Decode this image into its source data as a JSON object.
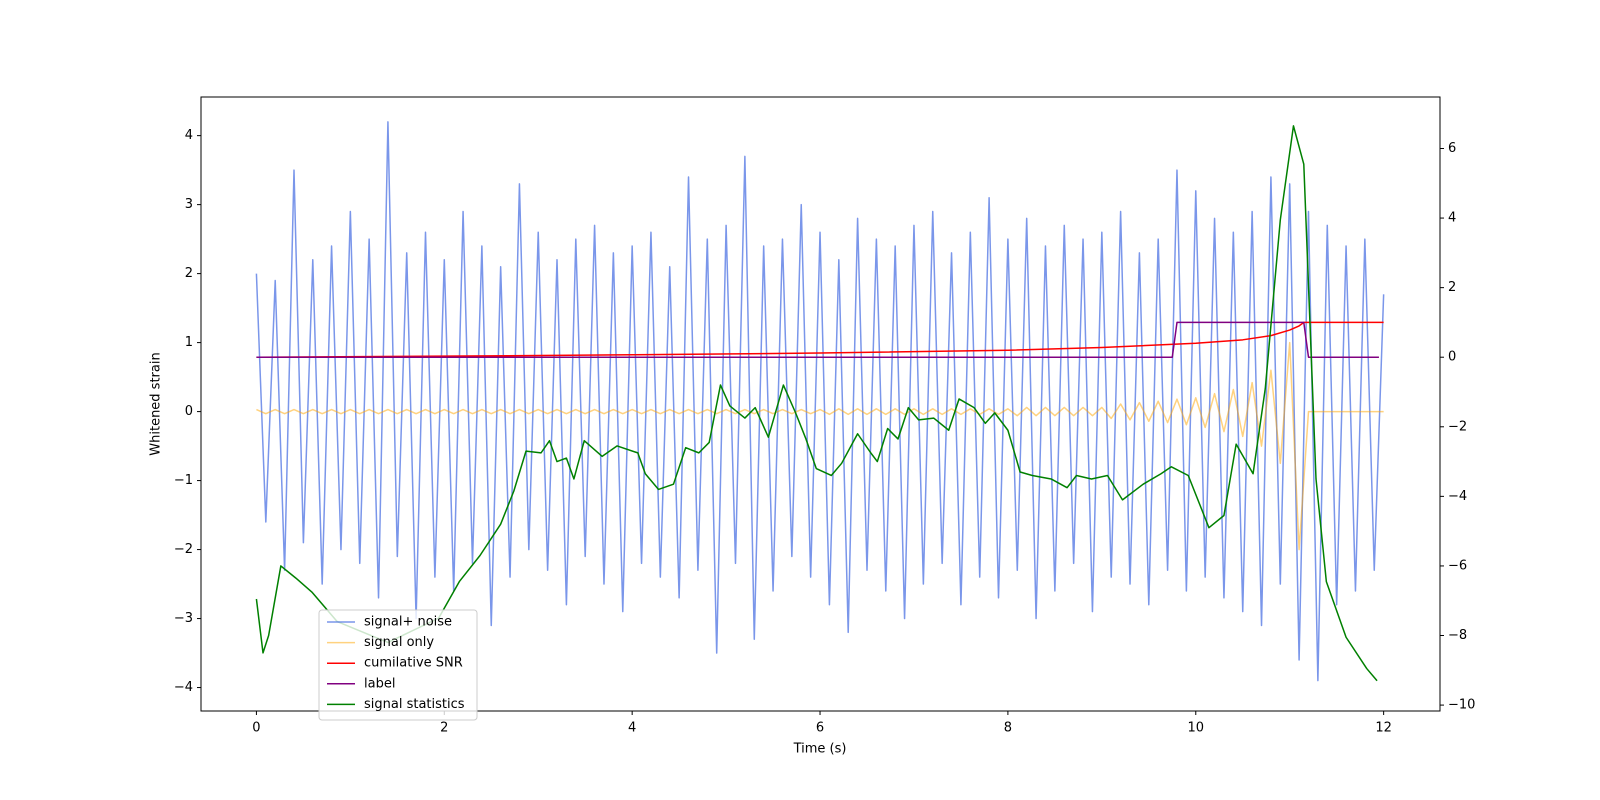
{
  "chart_data": {
    "type": "line",
    "xlabel": "Time (s)",
    "ylabel": "Whitened strain",
    "xlim": [
      -0.59,
      12.6
    ],
    "ylim": [
      -4.34,
      4.56
    ],
    "y2lim": [
      -10.17,
      7.48
    ],
    "xticks": [
      0,
      2,
      4,
      6,
      8,
      10,
      12
    ],
    "yticks": [
      {
        "value": -4,
        "label": "−4"
      },
      {
        "value": -3,
        "label": "−3"
      },
      {
        "value": -2,
        "label": "−2"
      },
      {
        "value": -1,
        "label": "−1"
      },
      0,
      1,
      2,
      3,
      4
    ],
    "y2ticks": [
      {
        "value": -10,
        "label": "−10"
      },
      {
        "value": -8,
        "label": "−8"
      },
      {
        "value": -6,
        "label": "−6"
      },
      {
        "value": -4,
        "label": "−4"
      },
      {
        "value": -2,
        "label": "−2"
      },
      0,
      2,
      4,
      6
    ],
    "x": [
      0,
      0.1,
      0.2,
      0.3,
      0.4,
      0.5,
      0.6,
      0.7,
      0.8,
      0.9,
      1,
      1.1,
      1.2,
      1.3,
      1.4,
      1.5,
      1.6,
      1.7,
      1.8,
      1.9,
      2,
      2.1,
      2.2,
      2.3,
      2.4,
      2.5,
      2.6,
      2.7,
      2.8,
      2.9,
      3,
      3.1,
      3.2,
      3.3,
      3.4,
      3.5,
      3.6,
      3.7,
      3.8,
      3.9,
      4,
      4.1,
      4.2,
      4.3,
      4.4,
      4.5,
      4.6,
      4.7,
      4.8,
      4.9,
      5,
      5.1,
      5.2,
      5.3,
      5.4,
      5.5,
      5.6,
      5.7,
      5.8,
      5.9,
      6,
      6.1,
      6.2,
      6.3,
      6.4,
      6.5,
      6.6,
      6.7,
      6.8,
      6.9,
      7,
      7.1,
      7.2,
      7.3,
      7.4,
      7.5,
      7.6,
      7.7,
      7.8,
      7.9,
      8,
      8.1,
      8.2,
      8.3,
      8.4,
      8.5,
      8.6,
      8.7,
      8.8,
      8.9,
      9,
      9.1,
      9.2,
      9.3,
      9.4,
      9.5,
      9.6,
      9.7,
      9.8,
      9.9,
      10,
      10.1,
      10.2,
      10.3,
      10.4,
      10.5,
      10.6,
      10.7,
      10.8,
      10.9,
      11,
      11.1,
      11.2,
      11.3,
      11.4,
      11.5,
      11.6,
      11.7,
      11.8,
      11.9,
      12
    ],
    "series": [
      {
        "name": "signal+ noise",
        "color": "#4169e1",
        "alpha": 0.7,
        "values": [
          2.0,
          -1.6,
          1.9,
          -2.3,
          3.5,
          -1.9,
          2.2,
          -2.5,
          2.4,
          -2.0,
          2.9,
          -2.2,
          2.5,
          -2.7,
          4.2,
          -2.1,
          2.3,
          -3.0,
          2.6,
          -2.4,
          2.2,
          -2.6,
          2.9,
          -2.2,
          2.4,
          -3.1,
          2.1,
          -2.4,
          3.3,
          -2.0,
          2.6,
          -2.3,
          2.2,
          -2.8,
          2.5,
          -2.1,
          2.7,
          -2.5,
          2.3,
          -2.9,
          2.4,
          -2.2,
          2.6,
          -2.4,
          2.1,
          -2.7,
          3.4,
          -2.3,
          2.5,
          -3.5,
          2.7,
          -2.2,
          3.7,
          -3.3,
          2.4,
          -2.6,
          2.5,
          -2.1,
          3.0,
          -2.4,
          2.6,
          -2.8,
          2.2,
          -3.2,
          2.8,
          -2.3,
          2.5,
          -2.6,
          2.4,
          -3.0,
          2.7,
          -2.5,
          2.9,
          -2.2,
          2.3,
          -2.8,
          2.6,
          -2.4,
          3.1,
          -2.7,
          2.5,
          -2.3,
          2.8,
          -3.0,
          2.4,
          -2.6,
          2.7,
          -2.2,
          2.5,
          -2.9,
          2.6,
          -2.4,
          2.9,
          -2.5,
          2.3,
          -2.8,
          2.5,
          -2.3,
          3.5,
          -2.6,
          3.2,
          -2.4,
          2.8,
          -2.7,
          2.6,
          -2.9,
          2.9,
          -3.1,
          3.4,
          -2.5,
          3.3,
          -3.6,
          2.9,
          -3.9,
          2.7,
          -2.8,
          2.4,
          -2.6,
          2.5,
          -2.3,
          1.7
        ]
      },
      {
        "name": "signal only",
        "color": "#ffa500",
        "alpha": 0.5,
        "values": [
          0.03,
          -0.03,
          0.03,
          -0.03,
          0.03,
          -0.03,
          0.03,
          -0.03,
          0.03,
          -0.03,
          0.03,
          -0.03,
          0.03,
          -0.03,
          0.03,
          -0.03,
          0.03,
          -0.03,
          0.03,
          -0.03,
          0.03,
          -0.03,
          0.03,
          -0.03,
          0.03,
          -0.03,
          0.03,
          -0.03,
          0.03,
          -0.03,
          0.03,
          -0.03,
          0.03,
          -0.03,
          0.03,
          -0.03,
          0.03,
          -0.03,
          0.03,
          -0.03,
          0.03,
          -0.03,
          0.03,
          -0.03,
          0.03,
          -0.03,
          0.03,
          -0.03,
          0.03,
          -0.03,
          0.03,
          -0.03,
          0.03,
          -0.03,
          0.03,
          -0.03,
          0.03,
          -0.03,
          0.03,
          -0.03,
          0.03,
          -0.04,
          0.04,
          -0.04,
          0.04,
          -0.04,
          0.04,
          -0.04,
          0.04,
          -0.04,
          0.04,
          -0.04,
          0.04,
          -0.04,
          0.04,
          -0.04,
          0.04,
          -0.04,
          0.04,
          -0.04,
          0.04,
          -0.06,
          0.06,
          -0.06,
          0.06,
          -0.06,
          0.06,
          -0.06,
          0.06,
          -0.06,
          0.06,
          -0.1,
          0.11,
          -0.12,
          0.13,
          -0.14,
          0.15,
          -0.16,
          0.18,
          -0.19,
          0.2,
          -0.23,
          0.26,
          -0.29,
          0.32,
          -0.36,
          0.42,
          -0.5,
          0.6,
          -0.75,
          1.0,
          -2.0,
          0,
          0,
          0,
          0,
          0,
          0,
          0,
          0,
          0
        ]
      },
      {
        "name": "cumilative SNR",
        "color": "#ff0000",
        "axis": "y2",
        "x": [
          0,
          2,
          4,
          6,
          8,
          9,
          10,
          10.5,
          10.8,
          11,
          11.1,
          11.15,
          12
        ],
        "values": [
          0,
          0.03,
          0.07,
          0.12,
          0.2,
          0.28,
          0.4,
          0.5,
          0.62,
          0.78,
          0.9,
          1.0,
          1.0
        ]
      },
      {
        "name": "label",
        "color": "#800080",
        "axis": "y2",
        "x": [
          0,
          9.75,
          9.8,
          11.15,
          11.2,
          11.95
        ],
        "values": [
          0,
          0,
          1,
          1,
          0,
          0
        ]
      },
      {
        "name": "signal statistics",
        "color": "#008000",
        "axis": "y2",
        "x": [
          0,
          0.07,
          0.13,
          0.26,
          0.42,
          0.59,
          0.86,
          1.4,
          1.94,
          2.16,
          2.38,
          2.6,
          2.74,
          2.87,
          3.03,
          3.12,
          3.2,
          3.3,
          3.38,
          3.49,
          3.68,
          3.84,
          4.06,
          4.14,
          4.28,
          4.44,
          4.57,
          4.71,
          4.82,
          4.94,
          5.04,
          5.2,
          5.31,
          5.45,
          5.61,
          5.74,
          5.85,
          5.96,
          6.12,
          6.23,
          6.4,
          6.54,
          6.61,
          6.72,
          6.83,
          6.94,
          7.05,
          7.21,
          7.37,
          7.48,
          7.64,
          7.76,
          7.86,
          8.0,
          8.13,
          8.26,
          8.46,
          8.63,
          8.73,
          8.89,
          9.06,
          9.22,
          9.44,
          9.63,
          9.74,
          9.92,
          10.14,
          10.3,
          10.43,
          10.61,
          10.74,
          10.9,
          11.04,
          11.15,
          11.28,
          11.39,
          11.6,
          11.82,
          11.93
        ],
        "values": [
          -6.95,
          -8.5,
          -8.0,
          -6.0,
          -6.35,
          -6.75,
          -7.6,
          -8.2,
          -7.5,
          -6.45,
          -5.7,
          -4.8,
          -3.85,
          -2.7,
          -2.75,
          -2.4,
          -3.0,
          -2.9,
          -3.5,
          -2.4,
          -2.85,
          -2.55,
          -2.75,
          -3.35,
          -3.8,
          -3.65,
          -2.6,
          -2.75,
          -2.45,
          -0.8,
          -1.4,
          -1.75,
          -1.45,
          -2.3,
          -0.8,
          -1.6,
          -2.35,
          -3.2,
          -3.4,
          -3.05,
          -2.2,
          -2.75,
          -3.0,
          -2.05,
          -2.35,
          -1.45,
          -1.8,
          -1.75,
          -2.1,
          -1.2,
          -1.45,
          -1.9,
          -1.6,
          -2.1,
          -3.3,
          -3.4,
          -3.5,
          -3.75,
          -3.4,
          -3.5,
          -3.4,
          -4.1,
          -3.65,
          -3.35,
          -3.15,
          -3.4,
          -4.9,
          -4.55,
          -2.5,
          -3.35,
          -0.9,
          3.95,
          6.65,
          5.55,
          -3.5,
          -6.45,
          -8.05,
          -8.95,
          -9.3
        ]
      }
    ]
  }
}
